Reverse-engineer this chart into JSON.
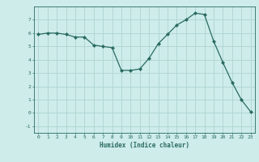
{
  "x": [
    0,
    1,
    2,
    3,
    4,
    5,
    6,
    7,
    8,
    9,
    10,
    11,
    12,
    13,
    14,
    15,
    16,
    17,
    18,
    19,
    20,
    21,
    22,
    23
  ],
  "y": [
    5.9,
    6.0,
    6.0,
    5.9,
    5.7,
    5.7,
    5.1,
    5.0,
    4.9,
    3.2,
    3.2,
    3.3,
    4.1,
    5.2,
    5.9,
    6.6,
    7.0,
    7.5,
    7.4,
    5.4,
    3.8,
    2.3,
    1.0,
    0.1
  ],
  "xlabel": "Humidex (Indice chaleur)",
  "bg_color": "#cdecea",
  "grid_color": "#aed4d0",
  "line_color": "#2a6b60",
  "xlim": [
    -0.5,
    23.5
  ],
  "ylim": [
    -1.5,
    8.0
  ],
  "yticks": [
    -1,
    0,
    1,
    2,
    3,
    4,
    5,
    6,
    7
  ],
  "xticks": [
    0,
    1,
    2,
    3,
    4,
    5,
    6,
    7,
    8,
    9,
    10,
    11,
    12,
    13,
    14,
    15,
    16,
    17,
    18,
    19,
    20,
    21,
    22,
    23
  ]
}
